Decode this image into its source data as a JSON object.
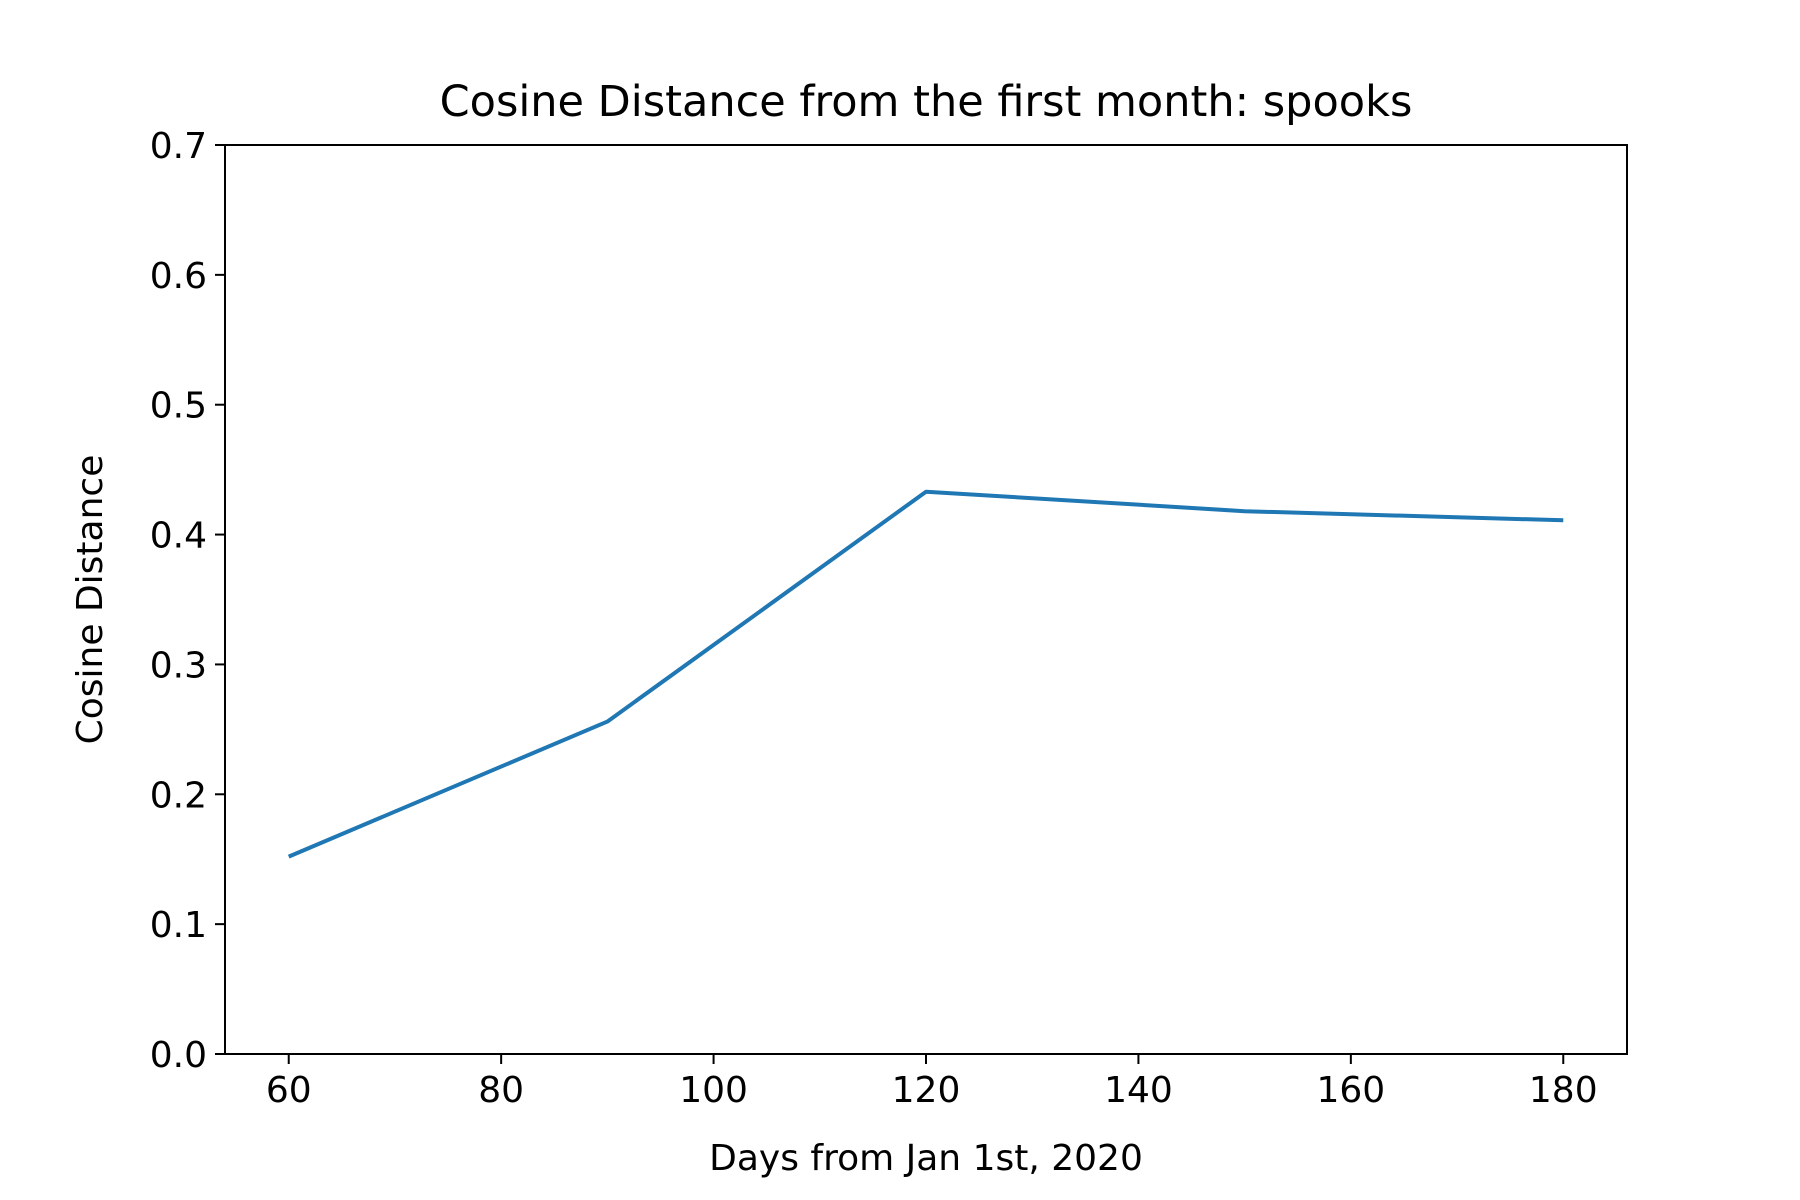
{
  "chart_data": {
    "type": "line",
    "title": "Cosine Distance from the first month: spooks",
    "xlabel": "Days from Jan 1st, 2020",
    "ylabel": "Cosine Distance",
    "xlim": [
      54,
      186
    ],
    "ylim": [
      0,
      0.7
    ],
    "xticks": [
      60,
      80,
      100,
      120,
      140,
      160,
      180
    ],
    "xtick_labels": [
      "60",
      "80",
      "100",
      "120",
      "140",
      "160",
      "180"
    ],
    "yticks": [
      0.0,
      0.1,
      0.2,
      0.3,
      0.4,
      0.5,
      0.6,
      0.7
    ],
    "ytick_labels": [
      "0.0",
      "0.1",
      "0.2",
      "0.3",
      "0.4",
      "0.5",
      "0.6",
      "0.7"
    ],
    "grid": false,
    "series": [
      {
        "x": [
          60,
          90,
          120,
          150,
          180
        ],
        "y": [
          0.152,
          0.256,
          0.433,
          0.418,
          0.411
        ],
        "color": "#1f77b4"
      }
    ]
  }
}
